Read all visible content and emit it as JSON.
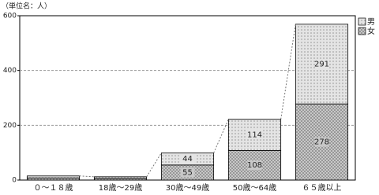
{
  "chart_data": {
    "type": "stacked_bar",
    "subtitle": "（単位名：人）",
    "categories": [
      "０～１８歳",
      "18歳～29歳",
      "30歳～49歳",
      "50歳～64歳",
      "６５歳以上"
    ],
    "series": [
      {
        "name": "女",
        "color": "#c8c8c8",
        "values": [
          8,
          6,
          55,
          108,
          278
        ],
        "value_labels": [
          null,
          null,
          "55",
          "108",
          "278"
        ]
      },
      {
        "name": "男",
        "color": "#e4e4e4",
        "values": [
          7,
          6,
          44,
          114,
          291
        ],
        "value_labels": [
          null,
          null,
          "44",
          "114",
          "291"
        ]
      }
    ],
    "ylim": [
      0,
      600
    ],
    "yticks": [
      0,
      200,
      400,
      600
    ],
    "grid": true
  }
}
